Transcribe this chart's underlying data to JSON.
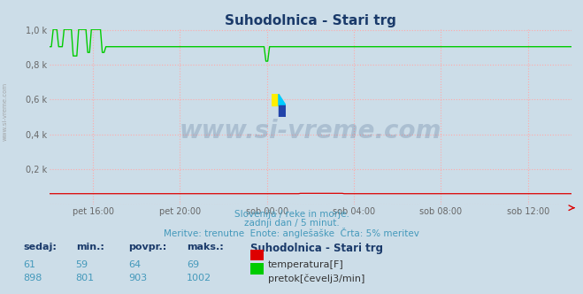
{
  "title": "Suhodolnica - Stari trg",
  "bg_color": "#ccdde8",
  "plot_bg_color": "#ccdde8",
  "grid_color": "#ffaaaa",
  "x_labels": [
    "pet 16:00",
    "pet 20:00",
    "sob 00:00",
    "sob 04:00",
    "sob 08:00",
    "sob 12:00"
  ],
  "x_ticks_norm": [
    0.0833,
    0.25,
    0.4167,
    0.5833,
    0.75,
    0.9167
  ],
  "ylim": [
    0,
    1002
  ],
  "yticks": [
    0,
    200,
    400,
    600,
    800,
    1000
  ],
  "ytick_labels": [
    "",
    "0,2 k",
    "0,4 k",
    "0,6 k",
    "0,8 k",
    "1,0 k"
  ],
  "temp_color": "#dd0000",
  "flow_color": "#00cc00",
  "watermark_text": "www.si-vreme.com",
  "watermark_color": "#1a3a6a",
  "watermark_alpha": 0.18,
  "subtitle1": "Slovenija / reke in morje.",
  "subtitle2": "zadnji dan / 5 minut.",
  "subtitle3": "Meritve: trenutne  Enote: anglešaške  Črta: 5% meritev",
  "subtitle_color": "#4499bb",
  "legend_title": "Suhodolnica - Stari trg",
  "legend_title_color": "#1a3a6a",
  "col_headers": [
    "sedaj:",
    "min.:",
    "povpr.:",
    "maks.:"
  ],
  "col_header_color": "#1a3a6a",
  "temp_values": [
    61,
    59,
    64,
    69
  ],
  "flow_values": [
    898,
    801,
    903,
    1002
  ],
  "table_val_color": "#4499bb",
  "n_points": 288,
  "sidebar_text": "www.si-vreme.com"
}
